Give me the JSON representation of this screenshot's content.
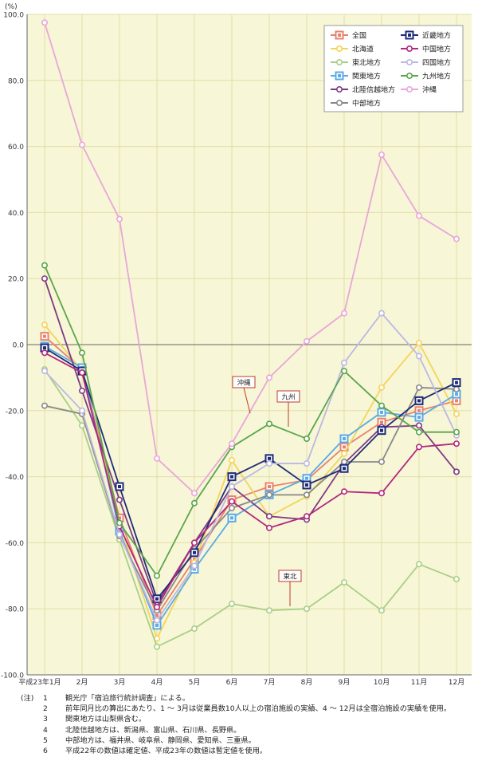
{
  "chart_data": {
    "type": "line",
    "unit_label": "(%)",
    "categories": [
      "平成23年1月",
      "2月",
      "3月",
      "4月",
      "5月",
      "6月",
      "7月",
      "8月",
      "9月",
      "10月",
      "11月",
      "12月"
    ],
    "ylim": [
      -100,
      100
    ],
    "yticks": [
      "100.0",
      "80.0",
      "60.0",
      "40.0",
      "20.0",
      "0.0",
      "-20.0",
      "-40.0",
      "-60.0",
      "-80.0",
      "-100.0"
    ],
    "grid": true,
    "legend_position": "top-right",
    "series": [
      {
        "name": "全国",
        "color": "#e8826c",
        "marker": "square",
        "values": [
          2.5,
          -7.5,
          -52.5,
          -82,
          -65,
          -47,
          -43,
          -41,
          -31,
          -23.5,
          -20,
          -17
        ]
      },
      {
        "name": "北海道",
        "color": "#f5d35a",
        "marker": "circle",
        "values": [
          6,
          -8,
          -54,
          -89,
          -66,
          -35,
          -52,
          -46,
          -33,
          -13,
          0.5,
          -21
        ]
      },
      {
        "name": "東北地方",
        "color": "#a8cf86",
        "marker": "circle",
        "values": [
          -7.5,
          -24.5,
          -59,
          -91.5,
          -86,
          -78.5,
          -80.5,
          -80,
          -72,
          -80.5,
          -66.5,
          -71
        ]
      },
      {
        "name": "関東地方",
        "color": "#5aabe6",
        "marker": "square",
        "values": [
          -0.5,
          -7,
          -56.5,
          -85,
          -68,
          -52.5,
          -45.5,
          -40.5,
          -28.5,
          -20.5,
          -22,
          -15
        ]
      },
      {
        "name": "北陸信越地方",
        "color": "#7e3a84",
        "marker": "circle",
        "values": [
          20,
          -14,
          -47,
          -78.5,
          -60,
          -43,
          -52,
          -53,
          -36,
          -25,
          -24.5,
          -38.5
        ]
      },
      {
        "name": "中部地方",
        "color": "#888888",
        "marker": "circle",
        "values": [
          -18.5,
          -21,
          -58,
          -80.5,
          -62,
          -49.5,
          -45.5,
          -45.5,
          -35.5,
          -35.5,
          -13,
          -13.5
        ]
      },
      {
        "name": "近畿地方",
        "color": "#1e2b79",
        "marker": "square",
        "values": [
          -1,
          -8,
          -43,
          -77,
          -63,
          -40,
          -34.5,
          -42.5,
          -37.5,
          -26,
          -17,
          -11.5
        ]
      },
      {
        "name": "中国地方",
        "color": "#b3287e",
        "marker": "circle",
        "values": [
          -2.5,
          -8.5,
          -55,
          -79.5,
          -60,
          -47.5,
          -55.5,
          -52,
          -44.5,
          -45,
          -31,
          -30
        ]
      },
      {
        "name": "四国地方",
        "color": "#bcb8e2",
        "marker": "circle",
        "values": [
          -8,
          -20,
          -57.5,
          -83.5,
          -67,
          -43,
          -36,
          -36,
          -5.5,
          9.5,
          -3.5,
          -27.5
        ]
      },
      {
        "name": "九州地方",
        "color": "#5aa64c",
        "marker": "circle",
        "values": [
          24,
          -2.5,
          -54,
          -70,
          -48,
          -31,
          -24,
          -28.5,
          -8,
          -18.5,
          -26.5,
          -26.5
        ]
      },
      {
        "name": "沖縄",
        "color": "#eaa6d8",
        "marker": "circle",
        "values": [
          97.5,
          60.5,
          38,
          -34.5,
          -45,
          -30,
          -10,
          1,
          9.5,
          57.5,
          39,
          32
        ]
      }
    ],
    "annotations": [
      {
        "text": "沖縄"
      },
      {
        "text": "九州"
      },
      {
        "text": "東北"
      }
    ]
  },
  "notes": {
    "prefix": "(注)",
    "items": [
      {
        "num": "1",
        "text": "観光庁「宿泊旅行統計調査」による。"
      },
      {
        "num": "2",
        "text": "前年同月比の算出にあたり、1 ～ 3月は従業員数10人以上の宿泊施設の実績、4 ～ 12月は全宿泊施設の実績を使用。"
      },
      {
        "num": "3",
        "text": "関東地方は山梨県含む。"
      },
      {
        "num": "4",
        "text": "北陸信越地方は、新潟県、富山県、石川県、長野県。"
      },
      {
        "num": "5",
        "text": "中部地方は、福井県、岐阜県、静岡県、愛知県、三重県。"
      },
      {
        "num": "6",
        "text": "平成22年の数値は確定値、平成23年の数値は暫定値を使用。"
      }
    ]
  }
}
